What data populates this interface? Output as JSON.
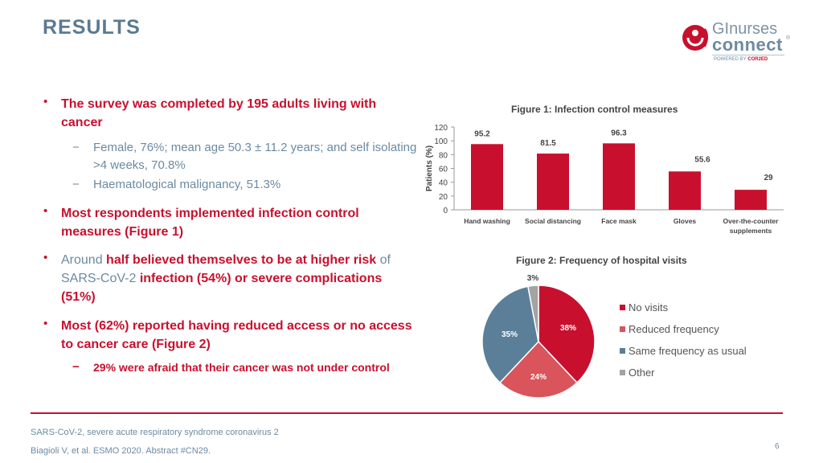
{
  "title": "RESULTS",
  "logo": {
    "line1": "GInurses",
    "line2": "connect",
    "reg": "®",
    "powered_prefix": "POWERED BY ",
    "powered_brand": "COR2ED"
  },
  "bullets": {
    "b1_text": "The survey was completed by 195 adults living with cancer",
    "b1_sub1": "Female, 76%; mean age 50.3 ± 11.2 years; and self isolating >4 weeks, 70.8%",
    "b1_sub2": "Haematological malignancy, 51.3%",
    "b2_text": "Most respondents implemented infection control measures (Figure 1)",
    "b3_p1": "Around ",
    "b3_p2": "half believed themselves to be at higher risk",
    "b3_p3": " of SARS-CoV-2 ",
    "b3_p4": "infection (54%) or severe complications (51%)",
    "b4_text": "Most (62%) reported having reduced access or no access to cancer care (Figure 2)",
    "b4_sub1": "29% were afraid that their cancer was not under control",
    "bullet_char": "•",
    "dash_char": "−"
  },
  "chart_data": [
    {
      "type": "bar",
      "title": "Figure 1: Infection control measures",
      "ylabel": "Patients (%)",
      "categories": [
        "Hand washing",
        "Social distancing",
        "Face mask",
        "Gloves",
        "Over-the-counter supplements"
      ],
      "values": [
        95.2,
        81.5,
        96.3,
        55.6,
        29
      ],
      "ylim": [
        0,
        120
      ],
      "yticks": [
        0,
        20,
        40,
        60,
        80,
        100,
        120
      ],
      "color": "#c8102e",
      "grid": false
    },
    {
      "type": "pie",
      "title": "Figure 2: Frequency of hospital visits",
      "labels": [
        "No visits",
        "Reduced frequency",
        "Same frequency as usual",
        "Other"
      ],
      "values": [
        38,
        24,
        35,
        3
      ],
      "value_labels": [
        "38%",
        "24%",
        "35%",
        "3%"
      ],
      "colors": [
        "#c8102e",
        "#d9545b",
        "#5b7f98",
        "#a3a3a3"
      ],
      "legend": "right"
    }
  ],
  "footnotes": {
    "abbrev": "SARS-CoV-2, severe acute respiratory syndrome coronavirus 2",
    "citation": "Biagioli V, et al. ESMO 2020. Abstract #CN29.",
    "page": "6"
  }
}
